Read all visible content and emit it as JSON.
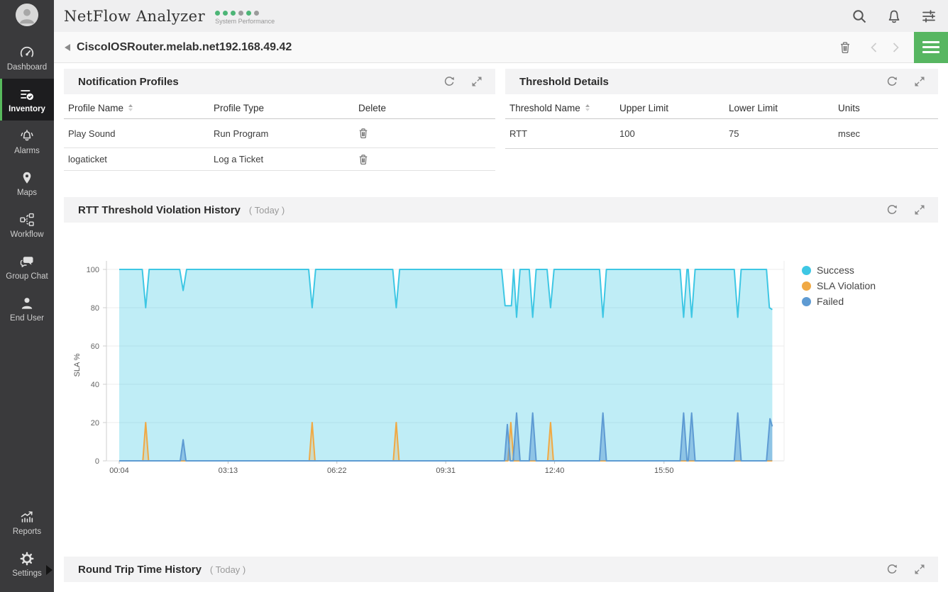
{
  "app": {
    "title": "NetFlow Analyzer",
    "subtitle": "System Performance",
    "dots": [
      "green",
      "green",
      "green",
      "gray",
      "green",
      "gray"
    ]
  },
  "colors": {
    "accent_green": "#57b661",
    "sidebar_bg": "#3a3a3c",
    "active_green_bar": "#57b95c"
  },
  "sidebar": {
    "items": [
      {
        "label": "Dashboard"
      },
      {
        "label": "Inventory",
        "active": true
      },
      {
        "label": "Alarms"
      },
      {
        "label": "Maps"
      },
      {
        "label": "Workflow"
      },
      {
        "label": "Group Chat"
      },
      {
        "label": "End User"
      },
      {
        "label": "Reports"
      },
      {
        "label": "Settings"
      }
    ]
  },
  "breadcrumb": {
    "title": "CiscoIOSRouter.melab.net192.168.49.42"
  },
  "panels": {
    "notification_profiles": {
      "title": "Notification Profiles",
      "columns": [
        "Profile Name",
        "Profile Type",
        "Delete"
      ],
      "rows": [
        [
          "Play Sound",
          "Run Program"
        ],
        [
          "logaticket",
          "Log a Ticket"
        ]
      ]
    },
    "threshold_details": {
      "title": "Threshold Details",
      "columns": [
        "Threshold Name",
        "Upper Limit",
        "Lower Limit",
        "Units"
      ],
      "rows": [
        [
          "RTT",
          "100",
          "75",
          "msec"
        ]
      ]
    },
    "rtt_history": {
      "title": "RTT Threshold Violation History",
      "period": "( Today )"
    },
    "round_trip": {
      "title": "Round Trip Time History",
      "period": "( Today )"
    }
  },
  "chart_data": {
    "type": "area",
    "title": "RTT Threshold Violation History",
    "period": "Today",
    "xlabel": "",
    "ylabel": "SLA %",
    "ylim": [
      0,
      100
    ],
    "yticks": [
      0,
      20,
      40,
      60,
      80,
      100
    ],
    "x_unit": "minutes_since_midnight",
    "xticks": [
      {
        "t": 4,
        "label": "00:04"
      },
      {
        "t": 193,
        "label": "03:13"
      },
      {
        "t": 382,
        "label": "06:22"
      },
      {
        "t": 571,
        "label": "09:31"
      },
      {
        "t": 760,
        "label": "12:40"
      },
      {
        "t": 950,
        "label": "15:50"
      }
    ],
    "grid": true,
    "legend_position": "right",
    "series": [
      {
        "name": "Success",
        "color": "#3ec7e4",
        "fill": "rgba(62,199,228,0.33)",
        "points": [
          [
            4,
            100
          ],
          [
            44,
            100
          ],
          [
            50,
            80
          ],
          [
            56,
            100
          ],
          [
            109,
            100
          ],
          [
            115,
            89
          ],
          [
            121,
            100
          ],
          [
            333,
            100
          ],
          [
            339,
            80
          ],
          [
            345,
            100
          ],
          [
            479,
            100
          ],
          [
            485,
            80
          ],
          [
            491,
            100
          ],
          [
            668,
            100
          ],
          [
            674,
            81
          ],
          [
            685,
            81
          ],
          [
            689,
            100
          ],
          [
            694,
            75
          ],
          [
            700,
            100
          ],
          [
            716,
            100
          ],
          [
            722,
            75
          ],
          [
            728,
            100
          ],
          [
            747,
            100
          ],
          [
            753,
            80
          ],
          [
            759,
            100
          ],
          [
            838,
            100
          ],
          [
            844,
            75
          ],
          [
            850,
            100
          ],
          [
            978,
            100
          ],
          [
            984,
            75
          ],
          [
            990,
            100
          ],
          [
            992,
            100
          ],
          [
            998,
            75
          ],
          [
            1004,
            100
          ],
          [
            1072,
            100
          ],
          [
            1078,
            75
          ],
          [
            1084,
            100
          ],
          [
            1128,
            100
          ],
          [
            1133,
            80
          ],
          [
            1138,
            79
          ]
        ]
      },
      {
        "name": "SLA Violation",
        "color": "#f0a944",
        "fill": "rgba(240,169,68,0.28)",
        "points": [
          [
            4,
            0
          ],
          [
            45,
            0
          ],
          [
            50,
            20
          ],
          [
            55,
            0
          ],
          [
            334,
            0
          ],
          [
            339,
            20
          ],
          [
            344,
            0
          ],
          [
            480,
            0
          ],
          [
            485,
            20
          ],
          [
            490,
            0
          ],
          [
            679,
            0
          ],
          [
            684,
            20
          ],
          [
            689,
            0
          ],
          [
            748,
            0
          ],
          [
            753,
            20
          ],
          [
            758,
            0
          ],
          [
            1138,
            0
          ]
        ]
      },
      {
        "name": "Failed",
        "color": "#5e9bd3",
        "fill": "rgba(94,155,211,0.5)",
        "points": [
          [
            4,
            0
          ],
          [
            110,
            0
          ],
          [
            115,
            11
          ],
          [
            120,
            0
          ],
          [
            673,
            0
          ],
          [
            678,
            19
          ],
          [
            683,
            0
          ],
          [
            688,
            0
          ],
          [
            694,
            25
          ],
          [
            700,
            0
          ],
          [
            716,
            0
          ],
          [
            722,
            25
          ],
          [
            728,
            0
          ],
          [
            838,
            0
          ],
          [
            844,
            25
          ],
          [
            850,
            0
          ],
          [
            978,
            0
          ],
          [
            984,
            25
          ],
          [
            990,
            0
          ],
          [
            992,
            0
          ],
          [
            998,
            25
          ],
          [
            1004,
            0
          ],
          [
            1072,
            0
          ],
          [
            1078,
            25
          ],
          [
            1084,
            0
          ],
          [
            1128,
            0
          ],
          [
            1134,
            22
          ],
          [
            1138,
            18
          ]
        ]
      }
    ]
  }
}
